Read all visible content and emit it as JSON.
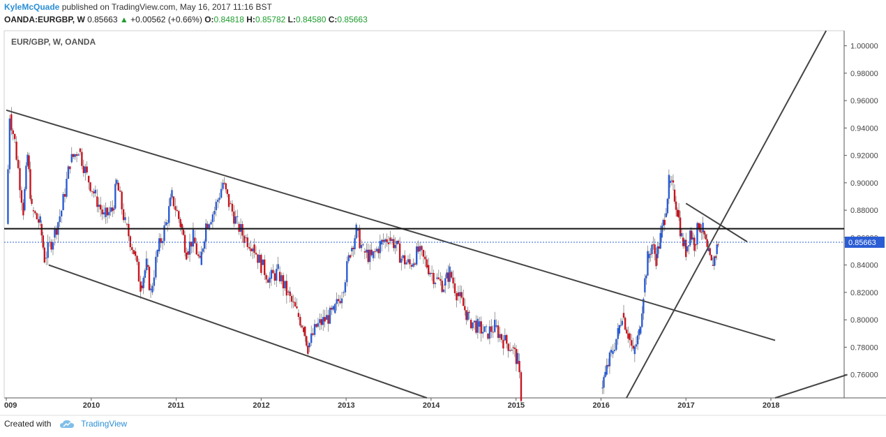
{
  "header": {
    "user": "KyleMcQuade",
    "published_text": "published on TradingView.com, May 16, 2017 11:16 BST",
    "symbol": "OANDA:EURGBP, W",
    "last": "0.85663",
    "change": "+0.00562 (+0.66%)",
    "o_label": "O:",
    "o_value": "0.84818",
    "h_label": "H:",
    "h_value": "0.85782",
    "l_label": "L:",
    "l_value": "0.84580",
    "c_label": "C:",
    "c_value": "0.85663"
  },
  "footer": {
    "created_with": "Created with",
    "brand": "TradingView"
  },
  "chart_data": {
    "type": "candlestick",
    "title": "EUR/GBP, W, OANDA",
    "ylim": [
      0.743,
      1.011
    ],
    "y_ticks": [
      "0.76000",
      "0.78000",
      "0.80000",
      "0.82000",
      "0.84000",
      "0.86000",
      "0.88000",
      "0.90000",
      "0.92000",
      "0.94000",
      "0.96000",
      "0.98000",
      "1.00000"
    ],
    "x_ticks": [
      {
        "label": "009",
        "t": 2009.0
      },
      {
        "label": "2010",
        "t": 2010.0
      },
      {
        "label": "2011",
        "t": 2011.0
      },
      {
        "label": "2012",
        "t": 2012.0
      },
      {
        "label": "2013",
        "t": 2013.0
      },
      {
        "label": "2014",
        "t": 2014.0
      },
      {
        "label": "2015",
        "t": 2015.0
      },
      {
        "label": "2016",
        "t": 2016.0
      },
      {
        "label": "2017",
        "t": 2017.0
      },
      {
        "label": "2018",
        "t": 2018.0
      }
    ],
    "last_price": 0.85663,
    "last_price_label": "0.85663",
    "up_color": "#2a5cd4",
    "down_color": "#c8141e",
    "horizontal_level": 0.8665,
    "price_path": [
      [
        2009.0,
        0.87
      ],
      [
        2009.04,
        0.95
      ],
      [
        2009.1,
        0.93
      ],
      [
        2009.2,
        0.88
      ],
      [
        2009.25,
        0.92
      ],
      [
        2009.3,
        0.88
      ],
      [
        2009.4,
        0.87
      ],
      [
        2009.45,
        0.845
      ],
      [
        2009.55,
        0.86
      ],
      [
        2009.65,
        0.88
      ],
      [
        2009.75,
        0.915
      ],
      [
        2009.85,
        0.925
      ],
      [
        2009.95,
        0.905
      ],
      [
        2010.05,
        0.89
      ],
      [
        2010.15,
        0.875
      ],
      [
        2010.25,
        0.88
      ],
      [
        2010.3,
        0.9
      ],
      [
        2010.4,
        0.87
      ],
      [
        2010.5,
        0.85
      ],
      [
        2010.58,
        0.825
      ],
      [
        2010.65,
        0.84
      ],
      [
        2010.7,
        0.82
      ],
      [
        2010.78,
        0.85
      ],
      [
        2010.88,
        0.87
      ],
      [
        2010.95,
        0.89
      ],
      [
        2011.05,
        0.87
      ],
      [
        2011.12,
        0.85
      ],
      [
        2011.2,
        0.86
      ],
      [
        2011.28,
        0.84
      ],
      [
        2011.35,
        0.87
      ],
      [
        2011.45,
        0.88
      ],
      [
        2011.55,
        0.9
      ],
      [
        2011.62,
        0.885
      ],
      [
        2011.72,
        0.87
      ],
      [
        2011.8,
        0.86
      ],
      [
        2011.9,
        0.855
      ],
      [
        2012.0,
        0.84
      ],
      [
        2012.1,
        0.83
      ],
      [
        2012.2,
        0.835
      ],
      [
        2012.3,
        0.82
      ],
      [
        2012.42,
        0.805
      ],
      [
        2012.5,
        0.795
      ],
      [
        2012.55,
        0.78
      ],
      [
        2012.65,
        0.795
      ],
      [
        2012.75,
        0.8
      ],
      [
        2012.85,
        0.805
      ],
      [
        2012.95,
        0.82
      ],
      [
        2013.05,
        0.85
      ],
      [
        2013.12,
        0.865
      ],
      [
        2013.2,
        0.85
      ],
      [
        2013.3,
        0.845
      ],
      [
        2013.4,
        0.855
      ],
      [
        2013.5,
        0.86
      ],
      [
        2013.58,
        0.855
      ],
      [
        2013.65,
        0.845
      ],
      [
        2013.75,
        0.84
      ],
      [
        2013.85,
        0.85
      ],
      [
        2013.95,
        0.84
      ],
      [
        2014.05,
        0.83
      ],
      [
        2014.15,
        0.825
      ],
      [
        2014.22,
        0.835
      ],
      [
        2014.3,
        0.82
      ],
      [
        2014.38,
        0.81
      ],
      [
        2014.45,
        0.8
      ],
      [
        2014.55,
        0.795
      ],
      [
        2014.65,
        0.79
      ],
      [
        2014.75,
        0.795
      ],
      [
        2014.85,
        0.785
      ],
      [
        2014.95,
        0.78
      ],
      [
        2015.02,
        0.77
      ],
      [
        2015.06,
        0.745
      ]
    ],
    "price_path_2": [
      [
        2016.0,
        0.75
      ],
      [
        2016.05,
        0.76
      ],
      [
        2016.12,
        0.775
      ],
      [
        2016.2,
        0.79
      ],
      [
        2016.25,
        0.805
      ],
      [
        2016.32,
        0.79
      ],
      [
        2016.38,
        0.775
      ],
      [
        2016.45,
        0.79
      ],
      [
        2016.5,
        0.82
      ],
      [
        2016.55,
        0.845
      ],
      [
        2016.6,
        0.855
      ],
      [
        2016.65,
        0.845
      ],
      [
        2016.7,
        0.86
      ],
      [
        2016.75,
        0.875
      ],
      [
        2016.8,
        0.9
      ],
      [
        2016.85,
        0.895
      ],
      [
        2016.9,
        0.88
      ],
      [
        2016.95,
        0.86
      ],
      [
        2017.0,
        0.85
      ],
      [
        2017.05,
        0.865
      ],
      [
        2017.1,
        0.855
      ],
      [
        2017.15,
        0.87
      ],
      [
        2017.2,
        0.865
      ],
      [
        2017.25,
        0.85
      ],
      [
        2017.3,
        0.84
      ],
      [
        2017.35,
        0.848
      ],
      [
        2017.38,
        0.857
      ]
    ],
    "trendlines": [
      {
        "name": "channel-top",
        "t1": 2009.0,
        "p1": 0.953,
        "t2": 2018.05,
        "p2": 0.785
      },
      {
        "name": "channel-bottom",
        "t1": 2009.5,
        "p1": 0.84,
        "t2": 2013.95,
        "p2": 0.743
      },
      {
        "name": "uptrend",
        "t1": 2016.3,
        "p1": 0.743,
        "t2": 2018.65,
        "p2": 1.011
      },
      {
        "name": "parallel-lower",
        "t1": 2018.05,
        "p1": 0.743,
        "t2": 2018.9,
        "p2": 0.76
      },
      {
        "name": "resistance-short",
        "t1": 2017.0,
        "p1": 0.885,
        "t2": 2017.72,
        "p2": 0.857
      }
    ]
  }
}
